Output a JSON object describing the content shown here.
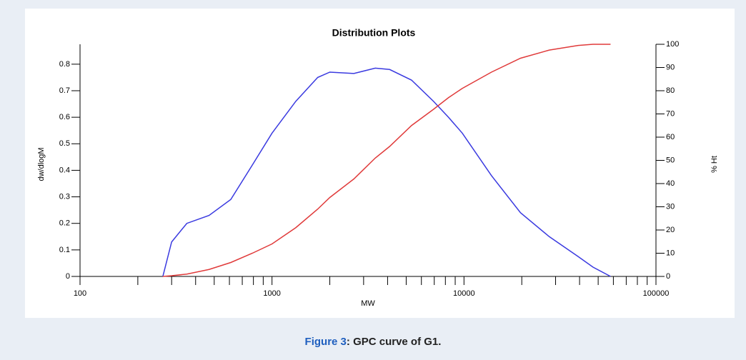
{
  "chart_data": {
    "type": "line",
    "title": "Distribution Plots",
    "x_label": "MW",
    "y_label": "dw/dlogM",
    "y2_label": "% Ht",
    "xscale": "log",
    "xlim": [
      100,
      100000
    ],
    "xticks": [
      100,
      1000,
      10000,
      100000
    ],
    "xminor_ticks": [
      200,
      300,
      400,
      500,
      600,
      700,
      800,
      900,
      2000,
      3000,
      4000,
      5000,
      6000,
      7000,
      8000,
      9000,
      20000,
      30000,
      40000,
      50000,
      60000,
      70000,
      80000,
      90000
    ],
    "ylim": [
      0,
      0.875
    ],
    "yticks": [
      0,
      0.1,
      0.2,
      0.3,
      0.4,
      0.5,
      0.6,
      0.7,
      0.8
    ],
    "y2lim": [
      0,
      100
    ],
    "y2ticks": [
      0,
      10,
      20,
      30,
      40,
      50,
      60,
      70,
      80,
      90,
      100
    ],
    "x": [
      270,
      300,
      360,
      470,
      610,
      790,
      1000,
      1330,
      1730,
      2000,
      2670,
      3450,
      4100,
      5330,
      6940,
      8300,
      9800,
      13900,
      19700,
      27800,
      39300,
      47000,
      58000
    ],
    "series": [
      {
        "color": "#3a3ae0",
        "values": [
          0,
          0.13,
          0.2,
          0.23,
          0.29,
          0.42,
          0.54,
          0.66,
          0.75,
          0.77,
          0.765,
          0.785,
          0.78,
          0.74,
          0.66,
          0.6,
          0.54,
          0.38,
          0.24,
          0.15,
          0.075,
          0.035,
          0
        ]
      },
      {
        "color": "#e03a3a",
        "axis": "y2",
        "values": [
          0,
          0.3,
          1,
          3,
          6,
          10,
          14,
          21,
          29,
          34,
          42,
          51,
          56,
          65,
          72,
          77,
          81,
          88,
          94,
          97.5,
          99.5,
          100,
          100
        ]
      }
    ]
  },
  "caption": {
    "label": "Figure 3",
    "text": ": GPC curve of G1."
  }
}
